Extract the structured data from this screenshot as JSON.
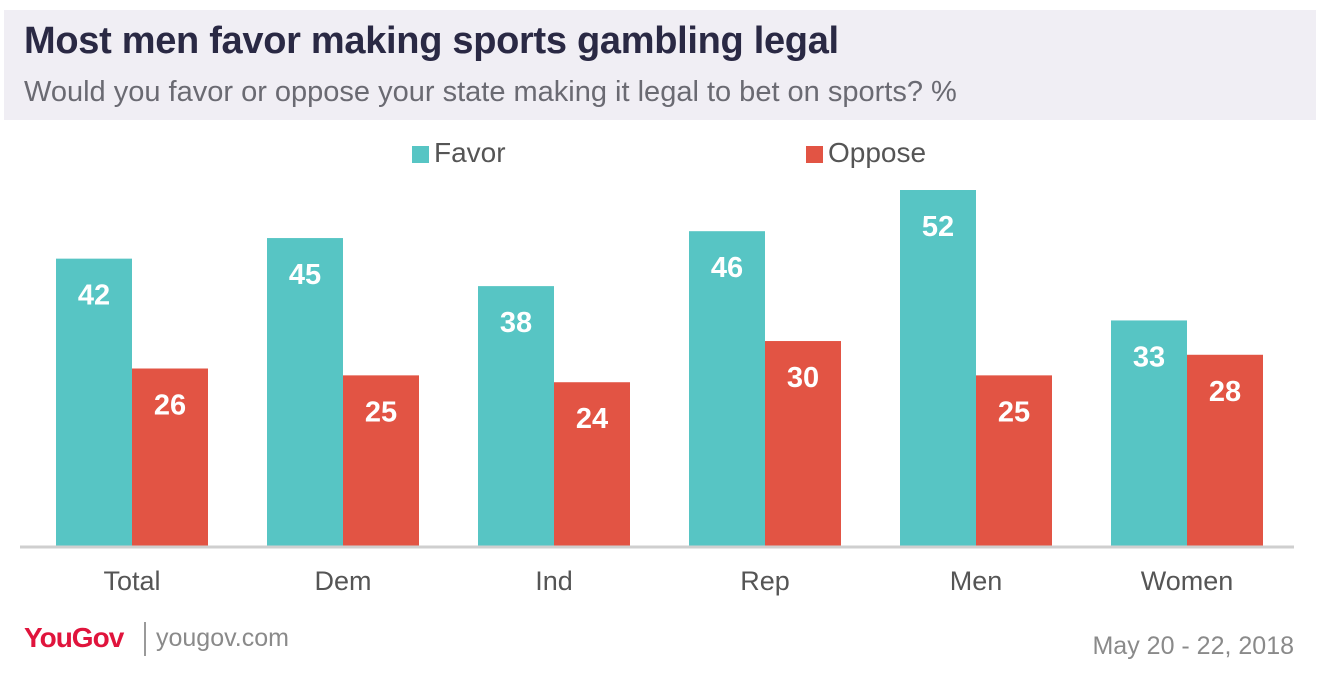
{
  "header": {
    "title": "Most men favor making sports gambling legal",
    "subtitle": "Would you favor or oppose your state making it legal to bet on sports? %"
  },
  "footer": {
    "brand": "YouGov",
    "site": "yougov.com",
    "date": "May 20 - 22, 2018"
  },
  "colors": {
    "favor": "#57c5c4",
    "oppose": "#e25444",
    "header_bg": "#f0eef4"
  },
  "chart_data": {
    "type": "bar",
    "categories": [
      "Total",
      "Dem",
      "Ind",
      "Rep",
      "Men",
      "Women"
    ],
    "series": [
      {
        "name": "Favor",
        "values": [
          42,
          45,
          38,
          46,
          52,
          33
        ]
      },
      {
        "name": "Oppose",
        "values": [
          26,
          25,
          24,
          30,
          25,
          28
        ]
      }
    ],
    "title": "Most men favor making sports gambling legal",
    "subtitle": "Would you favor or oppose your state making it legal to bet on sports? %",
    "ylim": [
      0,
      52
    ],
    "grid": false,
    "legend": "top-center",
    "data_labels": true
  }
}
